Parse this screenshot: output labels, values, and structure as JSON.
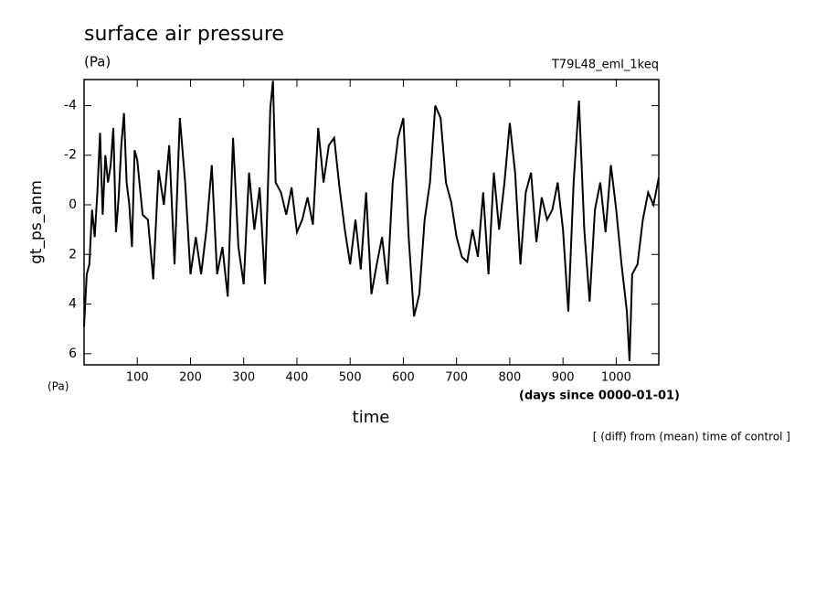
{
  "chart_data": {
    "type": "line",
    "title": "surface air pressure",
    "unit": "(Pa)",
    "experiment": "T79L48_eml_1keq",
    "ylabel": "gt_ps_anm",
    "yunit": "(Pa)",
    "xunit": "(days since 0000-01-01)",
    "xlabel": "time",
    "note": "[ (diff) from (mean) time of control ]",
    "color": "#000000",
    "xlim": [
      0,
      1080
    ],
    "xticks": [
      100,
      200,
      300,
      400,
      500,
      600,
      700,
      800,
      900,
      1000
    ],
    "ylim": [
      6.45,
      -5.05
    ],
    "yticks": [
      -4,
      -2,
      0,
      2,
      4,
      6
    ],
    "x": [
      0,
      5,
      10,
      15,
      20,
      25,
      30,
      35,
      40,
      45,
      50,
      55,
      60,
      65,
      70,
      75,
      80,
      85,
      90,
      95,
      100,
      110,
      120,
      130,
      140,
      150,
      160,
      170,
      180,
      190,
      200,
      210,
      220,
      230,
      240,
      250,
      260,
      270,
      280,
      290,
      300,
      310,
      320,
      330,
      340,
      350,
      355,
      360,
      370,
      380,
      390,
      400,
      410,
      420,
      430,
      440,
      450,
      460,
      470,
      480,
      490,
      500,
      510,
      520,
      530,
      540,
      550,
      560,
      570,
      580,
      590,
      600,
      610,
      620,
      630,
      640,
      650,
      660,
      670,
      680,
      690,
      700,
      710,
      720,
      730,
      740,
      750,
      760,
      770,
      780,
      790,
      800,
      810,
      820,
      830,
      840,
      850,
      860,
      870,
      880,
      890,
      900,
      910,
      920,
      930,
      940,
      950,
      960,
      970,
      980,
      990,
      1000,
      1010,
      1020,
      1025,
      1030,
      1040,
      1050,
      1060,
      1070,
      1080
    ],
    "values": [
      4.9,
      2.8,
      2.4,
      0.2,
      1.3,
      -0.5,
      -2.9,
      0.4,
      -2,
      -0.9,
      -1.6,
      -3.1,
      1.1,
      -0.3,
      -2.4,
      -3.7,
      -0.9,
      0,
      1.7,
      -2.2,
      -1.8,
      0.4,
      0.6,
      3.0,
      -1.4,
      0,
      -2.4,
      2.4,
      -3.5,
      -0.9,
      2.8,
      1.3,
      2.8,
      1.0,
      -1.6,
      2.8,
      1.7,
      3.7,
      -2.7,
      1.7,
      3.2,
      -1.3,
      1.0,
      -0.7,
      3.2,
      -3.9,
      -5.0,
      -0.9,
      -0.5,
      0.4,
      -0.7,
      1.1,
      0.6,
      -0.3,
      0.8,
      -3.1,
      -0.9,
      -2.4,
      -2.7,
      -0.7,
      1.0,
      2.4,
      0.6,
      2.6,
      -0.5,
      3.6,
      2.4,
      1.3,
      3.2,
      -0.9,
      -2.7,
      -3.5,
      1.3,
      4.5,
      3.6,
      0.6,
      -0.9,
      -4.0,
      -3.5,
      -0.9,
      -0.1,
      1.3,
      2.1,
      2.3,
      1.0,
      2.1,
      -0.5,
      2.8,
      -1.3,
      1.0,
      -0.9,
      -3.3,
      -1.3,
      2.4,
      -0.5,
      -1.3,
      1.5,
      -0.3,
      0.6,
      0.2,
      -0.9,
      1.0,
      4.3,
      -0.9,
      -4.2,
      1.0,
      3.9,
      0.2,
      -0.9,
      1.1,
      -1.6,
      0.2,
      2.4,
      4.3,
      6.3,
      2.8,
      2.4,
      0.6,
      -0.5,
      0,
      -1.1
    ]
  }
}
